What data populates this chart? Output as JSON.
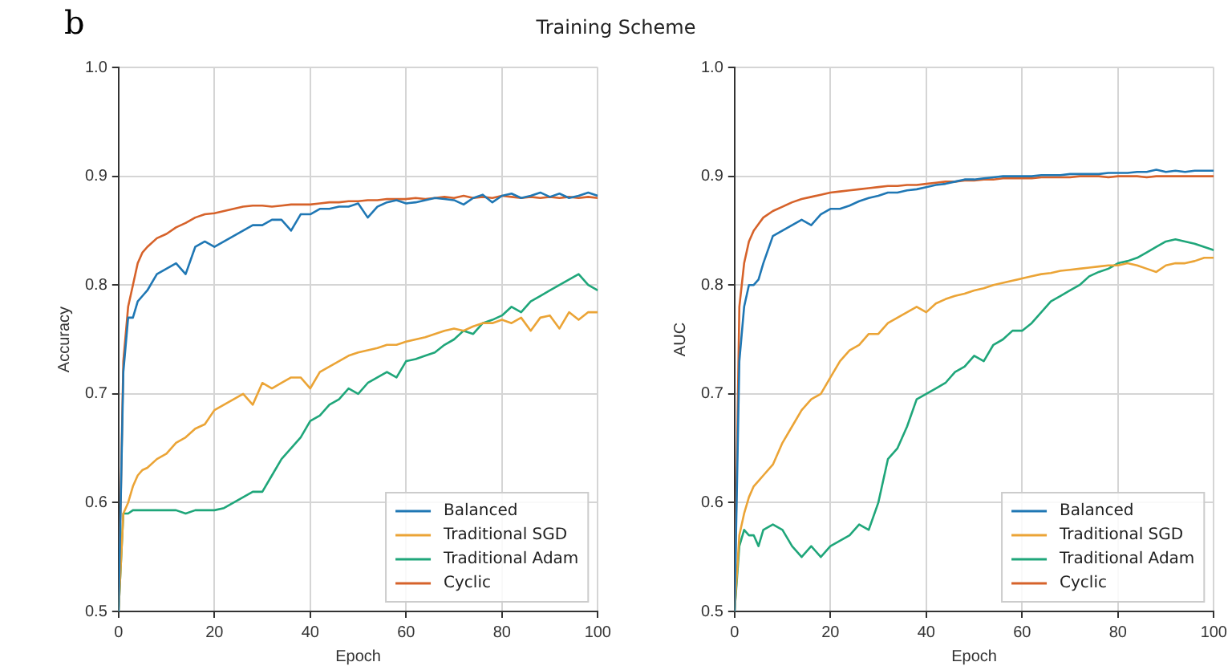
{
  "chart_data": [
    {
      "type": "line",
      "title": "Training Scheme",
      "annotations": [
        "b"
      ],
      "xlabel": "Epoch",
      "ylabel": "Accuracy",
      "xlim": [
        0,
        100
      ],
      "xticks": [
        0,
        20,
        40,
        60,
        80,
        100
      ],
      "ylim": [
        0.5,
        1.0
      ],
      "yticks": [
        {
          "value": 0.5,
          "label": "0.5"
        },
        {
          "value": 0.6,
          "label": "0.6"
        },
        {
          "value": 0.7,
          "label": "0.7"
        },
        {
          "value": 0.8,
          "label": "0.8"
        },
        {
          "value": 0.9,
          "label": "0.9"
        },
        {
          "value": 1.0,
          "label": "1.0"
        }
      ],
      "grid": true,
      "legend": "bottom right",
      "x": [
        0,
        1,
        2,
        3,
        4,
        5,
        6,
        8,
        10,
        12,
        14,
        16,
        18,
        20,
        22,
        24,
        26,
        28,
        30,
        32,
        34,
        36,
        38,
        40,
        42,
        44,
        46,
        48,
        50,
        52,
        54,
        56,
        58,
        60,
        62,
        64,
        66,
        68,
        70,
        72,
        74,
        76,
        78,
        80,
        82,
        84,
        86,
        88,
        90,
        92,
        94,
        96,
        98,
        100
      ],
      "series": [
        {
          "name": "Balanced",
          "color": "#1f77b4",
          "values": [
            0.5,
            0.72,
            0.77,
            0.77,
            0.785,
            0.79,
            0.795,
            0.81,
            0.815,
            0.82,
            0.81,
            0.835,
            0.84,
            0.835,
            0.84,
            0.845,
            0.85,
            0.855,
            0.855,
            0.86,
            0.86,
            0.85,
            0.865,
            0.865,
            0.87,
            0.87,
            0.872,
            0.872,
            0.875,
            0.862,
            0.872,
            0.876,
            0.878,
            0.875,
            0.876,
            0.878,
            0.88,
            0.879,
            0.878,
            0.874,
            0.88,
            0.883,
            0.876,
            0.882,
            0.884,
            0.88,
            0.882,
            0.885,
            0.881,
            0.884,
            0.88,
            0.882,
            0.885,
            0.882
          ]
        },
        {
          "name": "Traditional SGD",
          "color": "#eba436",
          "values": [
            0.5,
            0.59,
            0.6,
            0.615,
            0.625,
            0.63,
            0.632,
            0.64,
            0.645,
            0.655,
            0.66,
            0.668,
            0.672,
            0.685,
            0.69,
            0.695,
            0.7,
            0.69,
            0.71,
            0.705,
            0.71,
            0.715,
            0.715,
            0.705,
            0.72,
            0.725,
            0.73,
            0.735,
            0.738,
            0.74,
            0.742,
            0.745,
            0.745,
            0.748,
            0.75,
            0.752,
            0.755,
            0.758,
            0.76,
            0.758,
            0.762,
            0.765,
            0.765,
            0.768,
            0.765,
            0.77,
            0.758,
            0.77,
            0.772,
            0.76,
            0.775,
            0.768,
            0.775,
            0.775
          ]
        },
        {
          "name": "Traditional Adam",
          "color": "#1fa67a",
          "values": [
            0.5,
            0.59,
            0.59,
            0.593,
            0.593,
            0.593,
            0.593,
            0.593,
            0.593,
            0.593,
            0.59,
            0.593,
            0.593,
            0.593,
            0.595,
            0.6,
            0.605,
            0.61,
            0.61,
            0.625,
            0.64,
            0.65,
            0.66,
            0.675,
            0.68,
            0.69,
            0.695,
            0.705,
            0.7,
            0.71,
            0.715,
            0.72,
            0.715,
            0.73,
            0.732,
            0.735,
            0.738,
            0.745,
            0.75,
            0.758,
            0.755,
            0.765,
            0.768,
            0.772,
            0.78,
            0.775,
            0.785,
            0.79,
            0.795,
            0.8,
            0.805,
            0.81,
            0.8,
            0.795
          ]
        },
        {
          "name": "Cyclic",
          "color": "#d6622a",
          "values": [
            0.5,
            0.73,
            0.78,
            0.8,
            0.82,
            0.83,
            0.835,
            0.843,
            0.847,
            0.853,
            0.857,
            0.862,
            0.865,
            0.866,
            0.868,
            0.87,
            0.872,
            0.873,
            0.873,
            0.872,
            0.873,
            0.874,
            0.874,
            0.874,
            0.875,
            0.876,
            0.876,
            0.877,
            0.877,
            0.878,
            0.878,
            0.879,
            0.879,
            0.879,
            0.88,
            0.879,
            0.88,
            0.881,
            0.88,
            0.882,
            0.88,
            0.881,
            0.88,
            0.882,
            0.881,
            0.88,
            0.881,
            0.88,
            0.881,
            0.88,
            0.881,
            0.88,
            0.881,
            0.88
          ]
        }
      ]
    },
    {
      "type": "line",
      "xlabel": "Epoch",
      "ylabel": "AUC",
      "xlim": [
        0,
        100
      ],
      "xticks": [
        0,
        20,
        40,
        60,
        80,
        100
      ],
      "ylim": [
        0.5,
        1.0
      ],
      "yticks": [
        {
          "value": 0.5,
          "label": "0.5"
        },
        {
          "value": 0.6,
          "label": "0.6"
        },
        {
          "value": 0.7,
          "label": "0.7"
        },
        {
          "value": 0.8,
          "label": "0.8"
        },
        {
          "value": 0.9,
          "label": "0.9"
        },
        {
          "value": 1.0,
          "label": "1.0"
        }
      ],
      "grid": true,
      "legend": "bottom right",
      "x": [
        0,
        1,
        2,
        3,
        4,
        5,
        6,
        8,
        10,
        12,
        14,
        16,
        18,
        20,
        22,
        24,
        26,
        28,
        30,
        32,
        34,
        36,
        38,
        40,
        42,
        44,
        46,
        48,
        50,
        52,
        54,
        56,
        58,
        60,
        62,
        64,
        66,
        68,
        70,
        72,
        74,
        76,
        78,
        80,
        82,
        84,
        86,
        88,
        90,
        92,
        94,
        96,
        98,
        100
      ],
      "series": [
        {
          "name": "Balanced",
          "color": "#1f77b4",
          "values": [
            0.5,
            0.73,
            0.78,
            0.8,
            0.8,
            0.805,
            0.82,
            0.845,
            0.85,
            0.855,
            0.86,
            0.855,
            0.865,
            0.87,
            0.87,
            0.873,
            0.877,
            0.88,
            0.882,
            0.885,
            0.885,
            0.887,
            0.888,
            0.89,
            0.892,
            0.893,
            0.895,
            0.897,
            0.897,
            0.898,
            0.899,
            0.9,
            0.9,
            0.9,
            0.9,
            0.901,
            0.901,
            0.901,
            0.902,
            0.902,
            0.902,
            0.902,
            0.903,
            0.903,
            0.903,
            0.904,
            0.904,
            0.906,
            0.904,
            0.905,
            0.904,
            0.905,
            0.905,
            0.905
          ]
        },
        {
          "name": "Traditional SGD",
          "color": "#eba436",
          "values": [
            0.5,
            0.57,
            0.59,
            0.605,
            0.615,
            0.62,
            0.625,
            0.635,
            0.655,
            0.67,
            0.685,
            0.695,
            0.7,
            0.715,
            0.73,
            0.74,
            0.745,
            0.755,
            0.755,
            0.765,
            0.77,
            0.775,
            0.78,
            0.775,
            0.783,
            0.787,
            0.79,
            0.792,
            0.795,
            0.797,
            0.8,
            0.802,
            0.804,
            0.806,
            0.808,
            0.81,
            0.811,
            0.813,
            0.814,
            0.815,
            0.816,
            0.817,
            0.818,
            0.818,
            0.82,
            0.818,
            0.815,
            0.812,
            0.818,
            0.82,
            0.82,
            0.822,
            0.825,
            0.825
          ]
        },
        {
          "name": "Traditional Adam",
          "color": "#1fa67a",
          "values": [
            0.5,
            0.56,
            0.575,
            0.57,
            0.57,
            0.56,
            0.575,
            0.58,
            0.575,
            0.56,
            0.55,
            0.56,
            0.55,
            0.56,
            0.565,
            0.57,
            0.58,
            0.575,
            0.6,
            0.64,
            0.65,
            0.67,
            0.695,
            0.7,
            0.705,
            0.71,
            0.72,
            0.725,
            0.735,
            0.73,
            0.745,
            0.75,
            0.758,
            0.758,
            0.765,
            0.775,
            0.785,
            0.79,
            0.795,
            0.8,
            0.808,
            0.812,
            0.815,
            0.82,
            0.822,
            0.825,
            0.83,
            0.835,
            0.84,
            0.842,
            0.84,
            0.838,
            0.835,
            0.832
          ]
        },
        {
          "name": "Cyclic",
          "color": "#d6622a",
          "values": [
            0.5,
            0.78,
            0.82,
            0.84,
            0.85,
            0.856,
            0.862,
            0.868,
            0.872,
            0.876,
            0.879,
            0.881,
            0.883,
            0.885,
            0.886,
            0.887,
            0.888,
            0.889,
            0.89,
            0.891,
            0.891,
            0.892,
            0.892,
            0.893,
            0.894,
            0.895,
            0.895,
            0.896,
            0.896,
            0.897,
            0.897,
            0.898,
            0.898,
            0.898,
            0.898,
            0.899,
            0.899,
            0.899,
            0.899,
            0.9,
            0.9,
            0.9,
            0.899,
            0.9,
            0.9,
            0.9,
            0.899,
            0.9,
            0.9,
            0.9,
            0.9,
            0.9,
            0.9,
            0.9
          ]
        }
      ]
    }
  ]
}
